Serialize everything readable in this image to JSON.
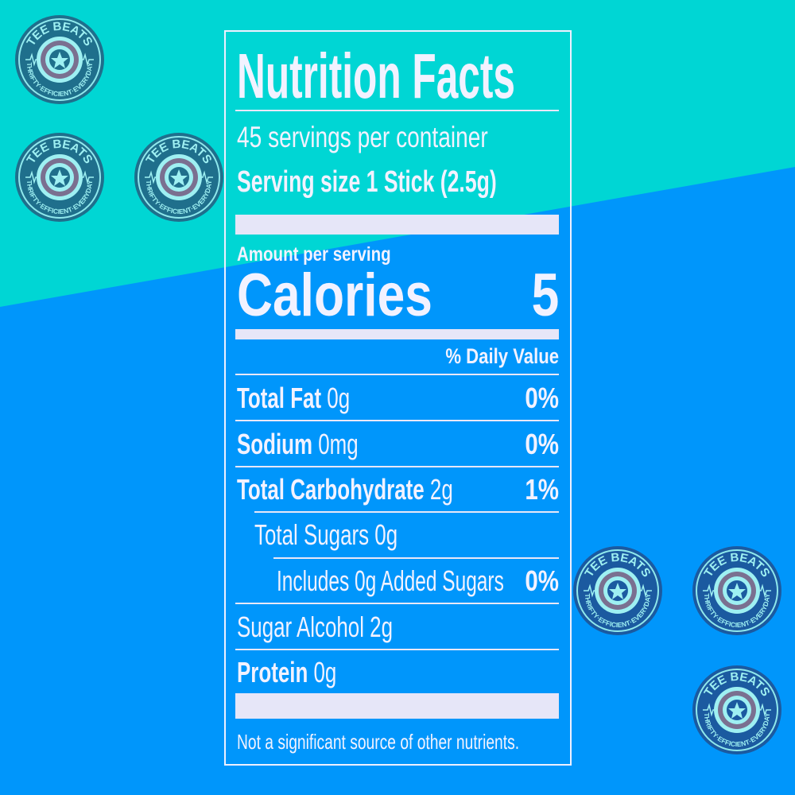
{
  "colors": {
    "top_bg": "#00d6d4",
    "bottom_bg": "#0096fb",
    "label_text": "#f2f2ff",
    "bar": "#e6e6f8"
  },
  "logo": {
    "name": "TEE BEATS",
    "tagline": "THRIFTY · EFFICIENT · EVERYDAY"
  },
  "label": {
    "title": "Nutrition Facts",
    "servings": "45 servings per container",
    "serving_size_label": "Serving size",
    "serving_size_value": "1 Stick (2.5g)",
    "amount_per_serving": "Amount per serving",
    "calories_label": "Calories",
    "calories_value": "5",
    "daily_value_header": "% Daily Value",
    "rows": [
      {
        "name": "Total Fat",
        "amount": "0g",
        "dv": "0%"
      },
      {
        "name": "Sodium",
        "amount": "0mg",
        "dv": "0%"
      },
      {
        "name": "Total Carbohydrate",
        "amount": "2g",
        "dv": "1%"
      },
      {
        "name": "Total Sugars 0g"
      },
      {
        "name": "Includes 0g Added Sugars",
        "dv": "0%"
      },
      {
        "name": "Sugar Alcohol 2g"
      },
      {
        "name": "Protein",
        "amount": "0g"
      }
    ],
    "footer": "Not a significant source of other nutrients."
  }
}
